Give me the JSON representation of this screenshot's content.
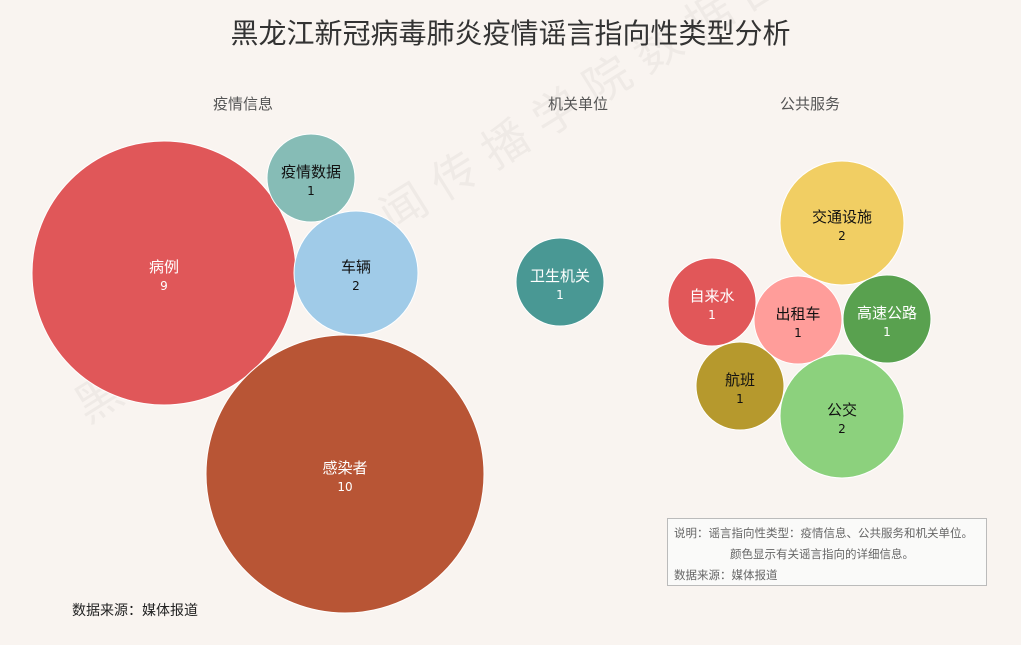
{
  "chart_data": {
    "type": "bubble",
    "title": "黑龙江新冠病毒肺炎疫情谣言指向性类型分析",
    "groups": [
      "疫情信息",
      "机关单位",
      "公共服务"
    ],
    "series": [
      {
        "group": "疫情信息",
        "label": "病例",
        "value": 9,
        "color": "#e05759"
      },
      {
        "group": "疫情信息",
        "label": "感染者",
        "value": 10,
        "color": "#b85535"
      },
      {
        "group": "疫情信息",
        "label": "疫情数据",
        "value": 1,
        "color": "#86bcb6"
      },
      {
        "group": "疫情信息",
        "label": "车辆",
        "value": 2,
        "color": "#a0cbe8"
      },
      {
        "group": "机关单位",
        "label": "卫生机关",
        "value": 1,
        "color": "#499894"
      },
      {
        "group": "公共服务",
        "label": "交通设施",
        "value": 2,
        "color": "#f1ce63"
      },
      {
        "group": "公共服务",
        "label": "自来水",
        "value": 1,
        "color": "#e15759"
      },
      {
        "group": "公共服务",
        "label": "出租车",
        "value": 1,
        "color": "#ff9d9a"
      },
      {
        "group": "公共服务",
        "label": "高速公路",
        "value": 1,
        "color": "#59a14f"
      },
      {
        "group": "公共服务",
        "label": "航班",
        "value": 1,
        "color": "#b6992d"
      },
      {
        "group": "公共服务",
        "label": "公交",
        "value": 2,
        "color": "#8cd17d"
      }
    ]
  },
  "source": "数据来源：媒体报道",
  "note": {
    "line1": "说明：谣言指向性类型：疫情信息、公共服务和机关单位。",
    "line2": "颜色显示有关谣言指向的详细信息。",
    "line3": "数据来源：媒体报道"
  },
  "watermark": "黑龙江大学新闻传播学院数据团队"
}
